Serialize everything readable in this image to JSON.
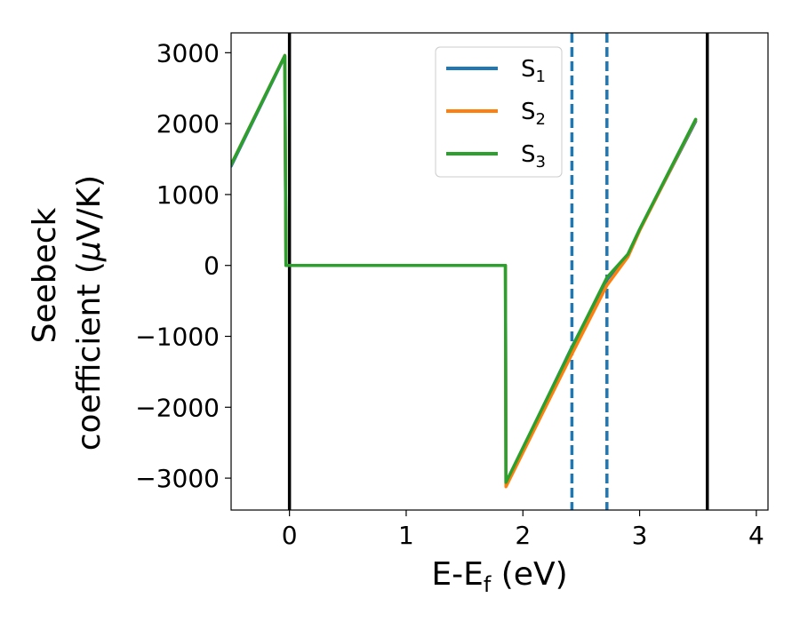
{
  "chart_data": {
    "type": "line",
    "xlabel": "E-E",
    "xlabel_sub": "f",
    "xlabel_unit": " (eV)",
    "ylabel_line1": "Seebeck",
    "ylabel_line2": "coefficient  (",
    "ylabel_mu": "μ",
    "ylabel_unit": "V/K)",
    "xlim": [
      -0.5,
      4.1
    ],
    "ylim": [
      -3450,
      3280
    ],
    "x_ticks": [
      0,
      1,
      2,
      3,
      4
    ],
    "x_tick_labels": [
      "0",
      "1",
      "2",
      "3",
      "4"
    ],
    "y_ticks": [
      3000,
      2000,
      1000,
      0,
      -1000,
      -2000,
      -3000
    ],
    "y_tick_labels": [
      "3000",
      "2000",
      "1000",
      "0",
      "−1000",
      "−2000",
      "−3000"
    ],
    "vlines_solid": [
      0,
      3.58
    ],
    "vlines_dashed": [
      2.42,
      2.72
    ],
    "vline_solid_color": "#000000",
    "vline_dashed_color": "#1f77b4",
    "legend_position": "top-center",
    "series": [
      {
        "name": "S",
        "sub": "1",
        "color": "#1f77b4",
        "points": [
          [
            -0.5,
            1400
          ],
          [
            -0.04,
            2950
          ],
          [
            -0.03,
            0
          ],
          [
            1.85,
            0
          ],
          [
            1.855,
            -3080
          ],
          [
            2.42,
            -1150
          ],
          [
            2.72,
            -200
          ],
          [
            2.9,
            150
          ],
          [
            3.0,
            500
          ],
          [
            3.48,
            2030
          ]
        ]
      },
      {
        "name": "S",
        "sub": "2",
        "color": "#ff7f0e",
        "points": [
          [
            -0.5,
            1420
          ],
          [
            -0.04,
            2960
          ],
          [
            -0.03,
            0
          ],
          [
            1.85,
            0
          ],
          [
            1.855,
            -3120
          ],
          [
            2.42,
            -1250
          ],
          [
            2.72,
            -280
          ],
          [
            2.9,
            120
          ],
          [
            3.0,
            490
          ],
          [
            3.48,
            2050
          ]
        ]
      },
      {
        "name": "S",
        "sub": "3",
        "color": "#2ca02c",
        "points": [
          [
            -0.5,
            1420
          ],
          [
            -0.04,
            2960
          ],
          [
            -0.03,
            0
          ],
          [
            1.85,
            0
          ],
          [
            1.855,
            -3060
          ],
          [
            2.42,
            -1160
          ],
          [
            2.72,
            -170
          ],
          [
            2.9,
            160
          ],
          [
            3.0,
            510
          ],
          [
            3.48,
            2060
          ]
        ]
      }
    ]
  }
}
